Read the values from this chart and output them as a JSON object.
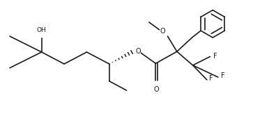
{
  "background": "#ffffff",
  "line_color": "#1a1a1a",
  "line_width": 1.2,
  "font_size": 6.5,
  "fig_width": 3.63,
  "fig_height": 1.73,
  "dpi": 100,
  "xlim": [
    0,
    9.5
  ],
  "ylim": [
    0,
    4.5
  ]
}
